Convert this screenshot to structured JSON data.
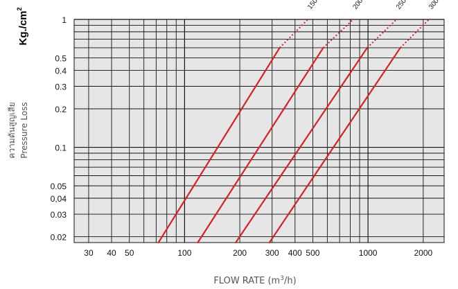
{
  "chart_data": {
    "type": "line",
    "x_scale": "log",
    "y_scale": "log",
    "xlim": [
      25,
      2600
    ],
    "ylim": [
      0.018,
      1.0
    ],
    "grid": true,
    "y_unit": "Kg./cm",
    "y_unit_exp": "2",
    "y_label_thai": "ความดันสูญเสีย",
    "y_label_en": "Pressure Loss",
    "x_label_main": "FLOW RATE (m",
    "x_label_exp": "3",
    "x_label_end": "/h)",
    "x_ticks": [
      {
        "value": 30,
        "label": "30"
      },
      {
        "value": 40,
        "label": "40"
      },
      {
        "value": 50,
        "label": "50"
      },
      {
        "value": 100,
        "label": "100"
      },
      {
        "value": 200,
        "label": "200"
      },
      {
        "value": 300,
        "label": "300"
      },
      {
        "value": 400,
        "label": "400"
      },
      {
        "value": 500,
        "label": "500"
      },
      {
        "value": 1000,
        "label": "1000"
      },
      {
        "value": 2000,
        "label": "2000"
      }
    ],
    "y_ticks": [
      {
        "value": 1,
        "label": "1"
      },
      {
        "value": 0.5,
        "label": "0.5"
      },
      {
        "value": 0.4,
        "label": "0.4"
      },
      {
        "value": 0.3,
        "label": "0.3"
      },
      {
        "value": 0.2,
        "label": "0.2"
      },
      {
        "value": 0.1,
        "label": "0.1"
      },
      {
        "value": 0.05,
        "label": "0.05"
      },
      {
        "value": 0.04,
        "label": "0,04"
      },
      {
        "value": 0.03,
        "label": "0.03"
      },
      {
        "value": 0.02,
        "label": "0.02"
      }
    ],
    "series": [
      {
        "name": "150",
        "points": [
          [
            72,
            0.018
          ],
          [
            330,
            0.6
          ]
        ],
        "dotted": [
          [
            330,
            0.6
          ],
          [
            470,
            1.0
          ]
        ]
      },
      {
        "name": "200",
        "points": [
          [
            118,
            0.018
          ],
          [
            570,
            0.6
          ]
        ],
        "dotted": [
          [
            570,
            0.6
          ],
          [
            830,
            1.0
          ]
        ]
      },
      {
        "name": "250",
        "points": [
          [
            190,
            0.018
          ],
          [
            990,
            0.6
          ]
        ],
        "dotted": [
          [
            990,
            0.6
          ],
          [
            1430,
            1.0
          ]
        ]
      },
      {
        "name": "300",
        "points": [
          [
            290,
            0.018
          ],
          [
            1500,
            0.6
          ]
        ],
        "dotted": [
          [
            1500,
            0.6
          ],
          [
            2150,
            1.0
          ]
        ]
      }
    ],
    "colors": {
      "line": "#d62027",
      "plot_bg": "#e6e6e6",
      "grid": "#111111"
    }
  }
}
